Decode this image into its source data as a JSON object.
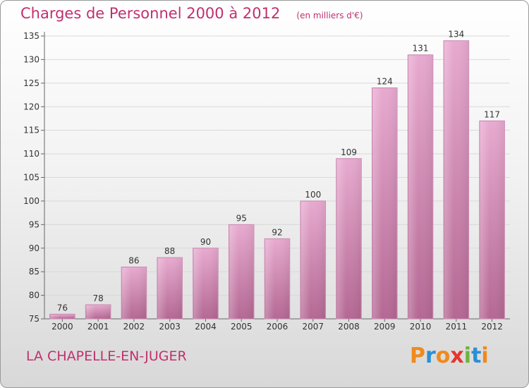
{
  "title": "Charges de Personnel 2000 à 2012",
  "subtitle": "(en milliers d'€)",
  "commune": "LA CHAPELLE-EN-JUGER",
  "logo": {
    "letters": [
      "P",
      "r",
      "o",
      "x",
      "i",
      "t",
      "i"
    ],
    "colors": [
      "#f08a1c",
      "#2a8fd6",
      "#f08a1c",
      "#e8322e",
      "#6db33f",
      "#2a8fd6",
      "#f08a1c"
    ]
  },
  "colors": {
    "title": "#c0306e",
    "bar_top": "#e7a8cf",
    "bar_bottom": "#b56a95"
  },
  "chart_data": {
    "type": "bar",
    "title": "Charges de Personnel 2000 à 2012",
    "subtitle": "(en milliers d'€)",
    "categories": [
      "2000",
      "2001",
      "2002",
      "2003",
      "2004",
      "2005",
      "2006",
      "2007",
      "2008",
      "2009",
      "2010",
      "2011",
      "2012"
    ],
    "values": [
      76,
      78,
      86,
      88,
      90,
      95,
      92,
      100,
      109,
      124,
      131,
      134,
      117
    ],
    "ylim": [
      75,
      135
    ],
    "yticks": [
      75,
      80,
      85,
      90,
      95,
      100,
      105,
      110,
      115,
      120,
      125,
      130,
      135
    ],
    "grid": true
  }
}
